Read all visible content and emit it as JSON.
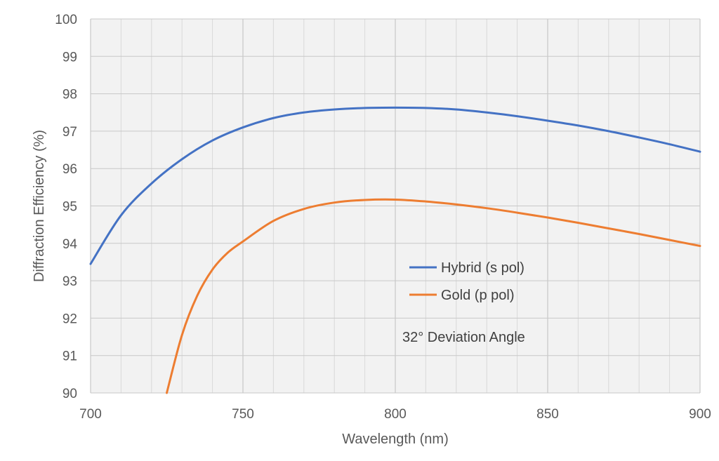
{
  "chart_data": {
    "type": "line",
    "title": "",
    "xlabel": "Wavelength (nm)",
    "ylabel": "Diffraction Efficiency (%)",
    "xlim": [
      700,
      900
    ],
    "ylim": [
      90,
      100
    ],
    "x_major_ticks": [
      700,
      750,
      800,
      850,
      900
    ],
    "x_minor_step": 10,
    "y_ticks": [
      90,
      91,
      92,
      93,
      94,
      95,
      96,
      97,
      98,
      99,
      100
    ],
    "grid": true,
    "legend_position": "center-right",
    "series": [
      {
        "name": "Hybrid (s pol)",
        "color": "#4472C4",
        "x": [
          700,
          710,
          720,
          730,
          740,
          750,
          760,
          770,
          780,
          790,
          800,
          810,
          820,
          830,
          840,
          850,
          860,
          870,
          880,
          890,
          900
        ],
        "y": [
          93.45,
          94.75,
          95.6,
          96.25,
          96.75,
          97.1,
          97.35,
          97.5,
          97.58,
          97.62,
          97.63,
          97.62,
          97.58,
          97.5,
          97.4,
          97.28,
          97.15,
          97.0,
          96.83,
          96.65,
          96.45
        ]
      },
      {
        "name": "Gold (p pol)",
        "color": "#ED7D31",
        "x": [
          725,
          730,
          735,
          740,
          745,
          750,
          760,
          770,
          780,
          790,
          800,
          810,
          820,
          830,
          840,
          850,
          860,
          870,
          880,
          890,
          900
        ],
        "y": [
          90.0,
          91.55,
          92.6,
          93.3,
          93.75,
          94.05,
          94.6,
          94.92,
          95.09,
          95.16,
          95.17,
          95.12,
          95.04,
          94.94,
          94.82,
          94.69,
          94.55,
          94.4,
          94.25,
          94.09,
          93.93
        ]
      }
    ],
    "annotation": "32° Deviation Angle"
  }
}
